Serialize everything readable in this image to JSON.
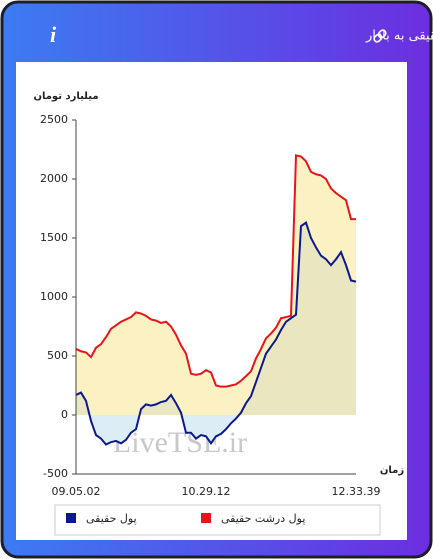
{
  "header": {
    "title": "برآیند ورود و خروج پول حقیقی و پول درشت حقیقی به بازار",
    "info": "i"
  },
  "chart_data": {
    "type": "area",
    "y_label": "میلیارد تومان",
    "x_label": "زمان",
    "watermark": "LiveTSE.ir",
    "categories": [
      "09.05.02",
      null,
      null,
      null,
      null,
      null,
      null,
      null,
      null,
      null,
      null,
      null,
      null,
      null,
      null,
      null,
      null,
      null,
      null,
      null,
      null,
      null,
      null,
      null,
      null,
      null,
      "10.29.12",
      null,
      null,
      null,
      null,
      null,
      null,
      null,
      null,
      null,
      null,
      null,
      null,
      null,
      null,
      null,
      null,
      null,
      null,
      null,
      null,
      null,
      null,
      null,
      null,
      null,
      null,
      null,
      null,
      null,
      "12.33.39"
    ],
    "ylim": [
      -500,
      2500
    ],
    "yticks": [
      -500,
      0,
      500,
      1000,
      1500,
      2000,
      2500
    ],
    "series": [
      {
        "name": "پول درشت حقیقی",
        "color": "#e8141a",
        "fill": "#fcf1c3",
        "negative_fill": "#fcf1c3",
        "values": [
          560,
          540,
          530,
          490,
          570,
          600,
          660,
          730,
          760,
          790,
          810,
          830,
          870,
          860,
          840,
          810,
          800,
          780,
          790,
          750,
          680,
          590,
          520,
          350,
          340,
          350,
          380,
          360,
          250,
          240,
          240,
          250,
          260,
          290,
          330,
          370,
          480,
          560,
          650,
          690,
          740,
          820,
          830,
          840,
          2200,
          2190,
          2150,
          2060,
          2040,
          2030,
          2000,
          1920,
          1880,
          1850,
          1820,
          1660,
          1660
        ]
      },
      {
        "name": "پول حقیقی",
        "color": "#0a1a8c",
        "fill": "#e9e6c0",
        "negative_fill": "#dcedf6",
        "values": [
          170,
          190,
          120,
          -50,
          -170,
          -200,
          -250,
          -230,
          -220,
          -240,
          -210,
          -150,
          -120,
          50,
          90,
          80,
          90,
          110,
          120,
          170,
          100,
          20,
          -150,
          -150,
          -200,
          -170,
          -180,
          -240,
          -180,
          -160,
          -120,
          -70,
          -30,
          20,
          100,
          160,
          280,
          400,
          520,
          580,
          640,
          720,
          790,
          820,
          850,
          1600,
          1630,
          1500,
          1420,
          1350,
          1320,
          1270,
          1320,
          1380,
          1270,
          1140,
          1130
        ]
      }
    ]
  }
}
